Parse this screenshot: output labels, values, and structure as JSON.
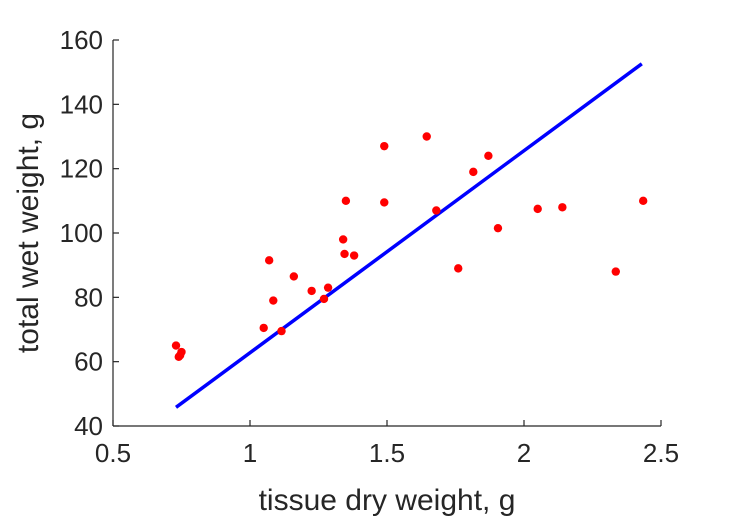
{
  "chart_data": {
    "type": "scatter",
    "title": "",
    "xlabel": "tissue dry weight, g",
    "ylabel": "total wet weight, g",
    "xlim": [
      0.5,
      2.5
    ],
    "ylim": [
      40,
      160
    ],
    "xticks": [
      0.5,
      1,
      1.5,
      2,
      2.5
    ],
    "xtick_labels": [
      "0.5",
      "1",
      "1.5",
      "2",
      "2.5"
    ],
    "yticks": [
      40,
      60,
      80,
      100,
      120,
      140,
      160
    ],
    "ytick_labels": [
      "40",
      "60",
      "80",
      "100",
      "120",
      "140",
      "160"
    ],
    "grid": false,
    "point_color": "#ff0000",
    "line_color": "#0000ff",
    "points": {
      "x": [
        0.73,
        0.74,
        0.745,
        0.75,
        1.05,
        1.07,
        1.085,
        1.115,
        1.16,
        1.225,
        1.27,
        1.285,
        1.34,
        1.345,
        1.35,
        1.38,
        1.49,
        1.49,
        1.645,
        1.68,
        1.76,
        1.815,
        1.87,
        1.905,
        2.05,
        2.14,
        2.335,
        2.435
      ],
      "y": [
        65,
        61.5,
        62,
        63,
        70.5,
        91.5,
        79,
        69.5,
        86.5,
        82,
        79.5,
        83,
        98,
        93.5,
        110,
        93,
        127,
        109.5,
        130,
        107,
        89,
        119,
        124,
        101.5,
        107.5,
        108,
        88,
        110
      ]
    },
    "fit_line": {
      "x": [
        0.73,
        2.43
      ],
      "y": [
        45.8,
        152.6
      ]
    }
  }
}
